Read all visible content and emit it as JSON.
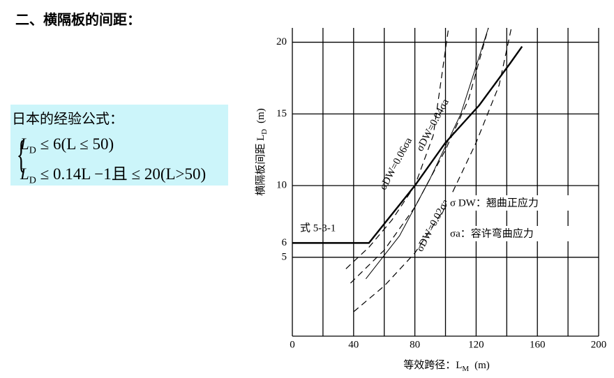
{
  "header": {
    "title": "二、横隔板的间距："
  },
  "formula_box": {
    "title": "日本的经验公式：",
    "lines": [
      {
        "var": "L",
        "sub": "D",
        "rest": "≤ 6(L ≤ 50)"
      },
      {
        "var": "L",
        "sub": "D",
        "rest": "≤ 0.14L −1且 ≤ 20(L>50)"
      }
    ]
  },
  "chart_data": {
    "type": "line",
    "y_label": "横隔板间距  L",
    "y_label_sub": "D",
    "y_label_unit": "(m)",
    "x_label": "等效跨径：L",
    "x_label_sub": "M",
    "x_label_unit": "(m)",
    "xlim": [
      0,
      200
    ],
    "ylim": [
      -0.5,
      21
    ],
    "xticks": [
      0,
      40,
      80,
      120,
      160,
      200
    ],
    "yticks": [
      5,
      6,
      10,
      15,
      20
    ],
    "xgrid": [
      0,
      20,
      40,
      60,
      80,
      100,
      120,
      140,
      160,
      180,
      200
    ],
    "ygrid": [
      5,
      10,
      15,
      20
    ],
    "annotations": [
      {
        "text": "式 5-3-1",
        "x": 5,
        "y": 7
      },
      {
        "text": "σDW=0.06σa",
        "x": 68,
        "y": 11.5
      },
      {
        "text": "σDW=0.04σa",
        "x": 92,
        "y": 14.2
      },
      {
        "text": "σDW=0.02σa",
        "x": 92,
        "y": 7.2
      }
    ],
    "legend_items": [
      "σ DW：翘曲正应力",
      "σa：容许弯曲应力"
    ],
    "series": [
      {
        "name": "式 5-3-1",
        "color": "#000000",
        "style": "solid",
        "width": 2.4,
        "x": [
          0,
          50,
          80,
          100,
          122,
          142,
          150
        ],
        "values": [
          6,
          6,
          10,
          13,
          15.6,
          18.5,
          19.7
        ]
      },
      {
        "name": "σDW=0.06σa",
        "color": "#000000",
        "style": "dashed",
        "width": 1.2,
        "x": [
          35,
          50,
          65,
          80,
          92,
          102
        ],
        "values": [
          4.2,
          5.7,
          7.6,
          10,
          13.5,
          21
        ]
      },
      {
        "name": "σDW=0.04σa",
        "color": "#000000",
        "style": "dashed",
        "width": 1.2,
        "x": [
          38,
          60,
          80,
          100,
          115,
          128
        ],
        "values": [
          3.2,
          5.5,
          8.5,
          12.5,
          16,
          21
        ]
      },
      {
        "name": "σDW=0.02σa",
        "color": "#000000",
        "style": "dashed",
        "width": 1.2,
        "x": [
          40,
          60,
          80,
          100,
          120,
          135,
          143
        ],
        "values": [
          1.2,
          3,
          5.3,
          8.5,
          13,
          17,
          21
        ]
      },
      {
        "color": "#000000",
        "style": "solid",
        "width": 1,
        "x": [
          48,
          70,
          90,
          110,
          128
        ],
        "values": [
          3.5,
          6.5,
          10.5,
          15,
          21
        ]
      }
    ]
  }
}
